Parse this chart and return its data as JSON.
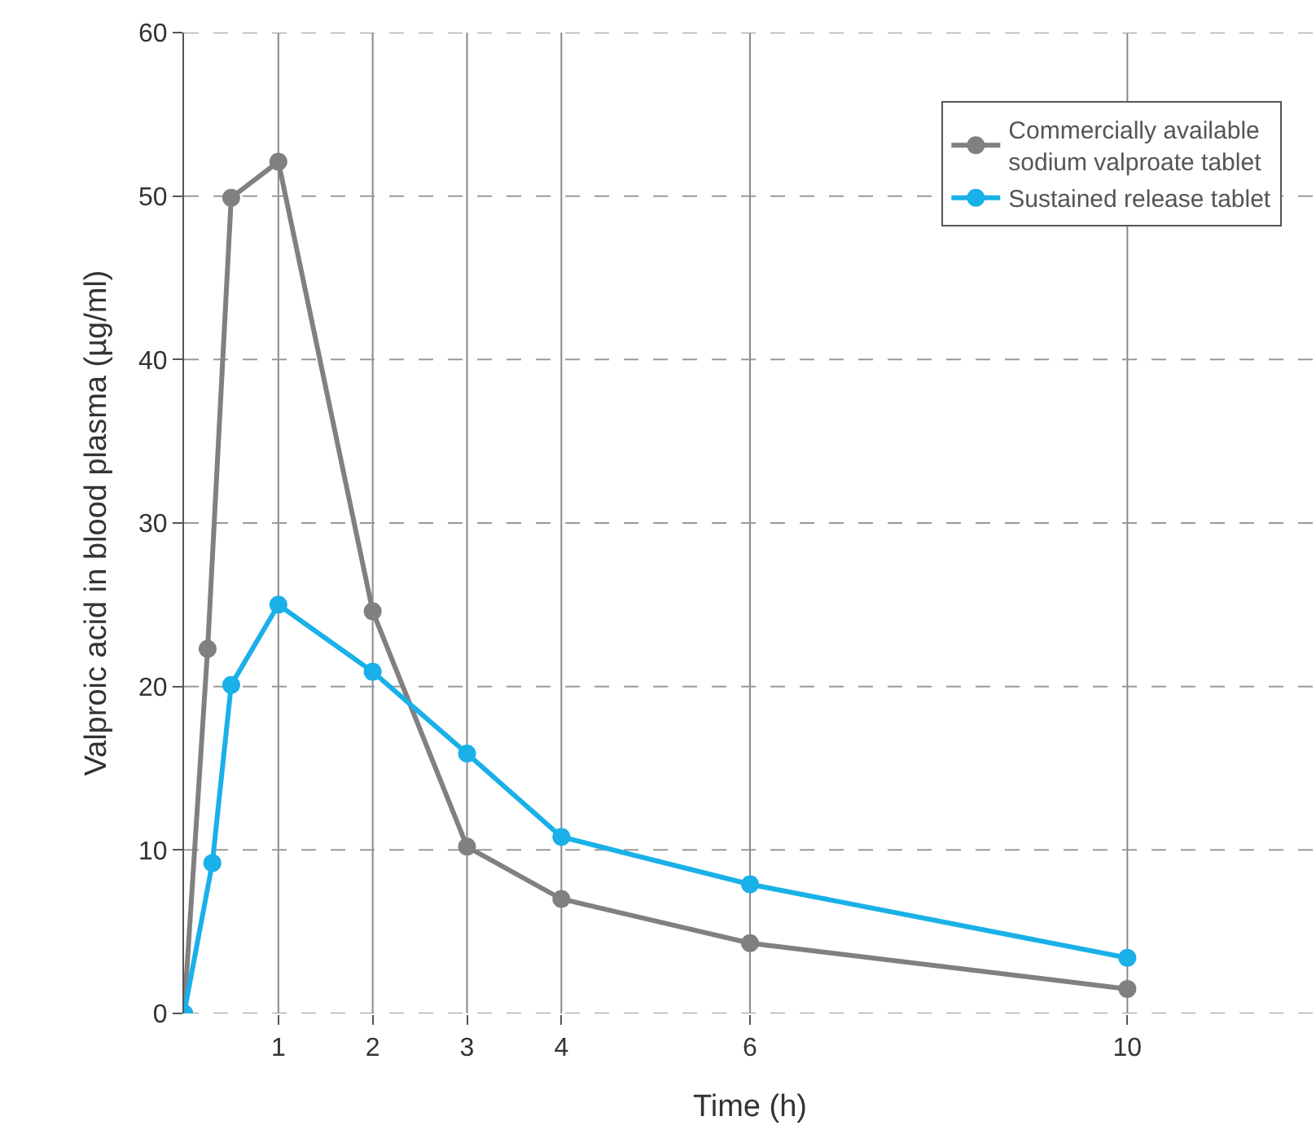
{
  "chart_data": {
    "type": "line",
    "xlabel": "Time (h)",
    "ylabel": "Valproic acid in blood plasma (µg/ml)",
    "series": [
      {
        "name": "Commercially available\nsodium valproate tablet",
        "color": "#808080",
        "x": [
          0,
          0.25,
          0.5,
          1,
          2,
          3,
          4,
          6,
          10
        ],
        "values": [
          0,
          22.3,
          49.9,
          52.1,
          24.6,
          10.2,
          7,
          4.3,
          1.5
        ]
      },
      {
        "name": "Sustained release tablet",
        "color": "#1ab0e8",
        "x": [
          0,
          0.3,
          0.5,
          1,
          2,
          3,
          4,
          6,
          10
        ],
        "values": [
          0,
          9.2,
          20.1,
          25,
          20.9,
          15.9,
          10.8,
          7.9,
          3.4
        ]
      }
    ],
    "xlim": [
      0,
      12
    ],
    "xticks": [
      1,
      2,
      3,
      4,
      6,
      10
    ],
    "ylim": [
      0,
      60
    ],
    "yticks": [
      0,
      10,
      20,
      30,
      40,
      50,
      60
    ],
    "grid": true,
    "legend": "top right",
    "marker": "circle",
    "line_style": "solid"
  }
}
